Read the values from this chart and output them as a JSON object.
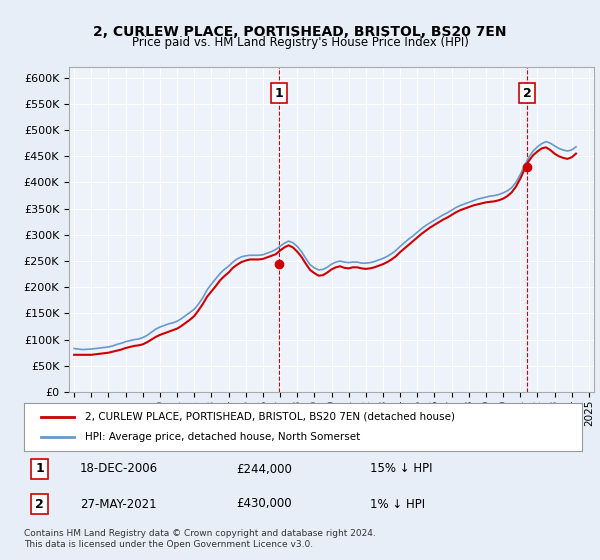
{
  "title": "2, CURLEW PLACE, PORTISHEAD, BRISTOL, BS20 7EN",
  "subtitle": "Price paid vs. HM Land Registry's House Price Index (HPI)",
  "legend_line1": "2, CURLEW PLACE, PORTISHEAD, BRISTOL, BS20 7EN (detached house)",
  "legend_line2": "HPI: Average price, detached house, North Somerset",
  "annotation1_label": "1",
  "annotation1_date": "18-DEC-2006",
  "annotation1_price": "£244,000",
  "annotation1_hpi": "15% ↓ HPI",
  "annotation2_label": "2",
  "annotation2_date": "27-MAY-2021",
  "annotation2_price": "£430,000",
  "annotation2_hpi": "1% ↓ HPI",
  "footer": "Contains HM Land Registry data © Crown copyright and database right 2024.\nThis data is licensed under the Open Government Licence v3.0.",
  "hpi_color": "#6699cc",
  "price_color": "#cc0000",
  "bg_color": "#e8eef8",
  "plot_bg": "#eef2fb",
  "grid_color": "#ffffff",
  "ylim": [
    0,
    620000
  ],
  "yticks": [
    0,
    50000,
    100000,
    150000,
    200000,
    250000,
    300000,
    350000,
    400000,
    450000,
    500000,
    550000,
    600000
  ],
  "hpi_data": {
    "years": [
      1995.0,
      1995.25,
      1995.5,
      1995.75,
      1996.0,
      1996.25,
      1996.5,
      1996.75,
      1997.0,
      1997.25,
      1997.5,
      1997.75,
      1998.0,
      1998.25,
      1998.5,
      1998.75,
      1999.0,
      1999.25,
      1999.5,
      1999.75,
      2000.0,
      2000.25,
      2000.5,
      2000.75,
      2001.0,
      2001.25,
      2001.5,
      2001.75,
      2002.0,
      2002.25,
      2002.5,
      2002.75,
      2003.0,
      2003.25,
      2003.5,
      2003.75,
      2004.0,
      2004.25,
      2004.5,
      2004.75,
      2005.0,
      2005.25,
      2005.5,
      2005.75,
      2006.0,
      2006.25,
      2006.5,
      2006.75,
      2007.0,
      2007.25,
      2007.5,
      2007.75,
      2008.0,
      2008.25,
      2008.5,
      2008.75,
      2009.0,
      2009.25,
      2009.5,
      2009.75,
      2010.0,
      2010.25,
      2010.5,
      2010.75,
      2011.0,
      2011.25,
      2011.5,
      2011.75,
      2012.0,
      2012.25,
      2012.5,
      2012.75,
      2013.0,
      2013.25,
      2013.5,
      2013.75,
      2014.0,
      2014.25,
      2014.5,
      2014.75,
      2015.0,
      2015.25,
      2015.5,
      2015.75,
      2016.0,
      2016.25,
      2016.5,
      2016.75,
      2017.0,
      2017.25,
      2017.5,
      2017.75,
      2018.0,
      2018.25,
      2018.5,
      2018.75,
      2019.0,
      2019.25,
      2019.5,
      2019.75,
      2020.0,
      2020.25,
      2020.5,
      2020.75,
      2021.0,
      2021.25,
      2021.5,
      2021.75,
      2022.0,
      2022.25,
      2022.5,
      2022.75,
      2023.0,
      2023.25,
      2023.5,
      2023.75,
      2024.0,
      2024.25
    ],
    "values": [
      83000,
      82000,
      81000,
      81500,
      82000,
      83000,
      84000,
      85000,
      86000,
      88000,
      91000,
      93000,
      96000,
      98000,
      100000,
      101000,
      104000,
      108000,
      114000,
      120000,
      124000,
      127000,
      130000,
      132000,
      135000,
      140000,
      146000,
      152000,
      158000,
      168000,
      180000,
      195000,
      206000,
      216000,
      226000,
      234000,
      240000,
      248000,
      254000,
      258000,
      260000,
      261000,
      261000,
      261000,
      262000,
      265000,
      268000,
      272000,
      278000,
      284000,
      288000,
      285000,
      278000,
      268000,
      255000,
      243000,
      237000,
      233000,
      234000,
      238000,
      244000,
      248000,
      250000,
      248000,
      247000,
      248000,
      248000,
      246000,
      246000,
      247000,
      249000,
      252000,
      255000,
      259000,
      264000,
      270000,
      278000,
      285000,
      292000,
      298000,
      305000,
      312000,
      318000,
      323000,
      328000,
      333000,
      338000,
      342000,
      347000,
      352000,
      356000,
      359000,
      362000,
      365000,
      368000,
      370000,
      372000,
      374000,
      375000,
      377000,
      380000,
      384000,
      390000,
      400000,
      415000,
      432000,
      448000,
      460000,
      468000,
      474000,
      478000,
      475000,
      470000,
      465000,
      462000,
      460000,
      462000,
      468000
    ]
  },
  "price_data": {
    "years": [
      1995.0,
      1995.25,
      1995.5,
      1995.75,
      1996.0,
      1996.25,
      1996.5,
      1996.75,
      1997.0,
      1997.25,
      1997.5,
      1997.75,
      1998.0,
      1998.25,
      1998.5,
      1998.75,
      1999.0,
      1999.25,
      1999.5,
      1999.75,
      2000.0,
      2000.25,
      2000.5,
      2000.75,
      2001.0,
      2001.25,
      2001.5,
      2001.75,
      2002.0,
      2002.25,
      2002.5,
      2002.75,
      2003.0,
      2003.25,
      2003.5,
      2003.75,
      2004.0,
      2004.25,
      2004.5,
      2004.75,
      2005.0,
      2005.25,
      2005.5,
      2005.75,
      2006.0,
      2006.25,
      2006.5,
      2006.75,
      2007.0,
      2007.25,
      2007.5,
      2007.75,
      2008.0,
      2008.25,
      2008.5,
      2008.75,
      2009.0,
      2009.25,
      2009.5,
      2009.75,
      2010.0,
      2010.25,
      2010.5,
      2010.75,
      2011.0,
      2011.25,
      2011.5,
      2011.75,
      2012.0,
      2012.25,
      2012.5,
      2012.75,
      2013.0,
      2013.25,
      2013.5,
      2013.75,
      2014.0,
      2014.25,
      2014.5,
      2014.75,
      2015.0,
      2015.25,
      2015.5,
      2015.75,
      2016.0,
      2016.25,
      2016.5,
      2016.75,
      2017.0,
      2017.25,
      2017.5,
      2017.75,
      2018.0,
      2018.25,
      2018.5,
      2018.75,
      2019.0,
      2019.25,
      2019.5,
      2019.75,
      2020.0,
      2020.25,
      2020.5,
      2020.75,
      2021.0,
      2021.25,
      2021.5,
      2021.75,
      2022.0,
      2022.25,
      2022.5,
      2022.75,
      2023.0,
      2023.25,
      2023.5,
      2023.75,
      2024.0,
      2024.25
    ],
    "values": [
      71000,
      71000,
      71000,
      71000,
      71000,
      72000,
      73000,
      74000,
      75000,
      77000,
      79000,
      81000,
      84000,
      86000,
      88000,
      89000,
      91000,
      95000,
      100000,
      105000,
      109000,
      112000,
      115000,
      118000,
      121000,
      126000,
      132000,
      138000,
      145000,
      156000,
      168000,
      182000,
      192000,
      202000,
      213000,
      221000,
      228000,
      237000,
      243000,
      248000,
      251000,
      253000,
      253000,
      253000,
      254000,
      257000,
      260000,
      263000,
      270000,
      276000,
      280000,
      276000,
      268000,
      258000,
      245000,
      233000,
      227000,
      222000,
      223000,
      228000,
      234000,
      238000,
      240000,
      237000,
      236000,
      238000,
      238000,
      236000,
      235000,
      236000,
      238000,
      241000,
      244000,
      248000,
      253000,
      259000,
      267000,
      274000,
      281000,
      288000,
      295000,
      302000,
      308000,
      314000,
      319000,
      324000,
      329000,
      333000,
      338000,
      343000,
      347000,
      350000,
      353000,
      356000,
      358000,
      360000,
      362000,
      363000,
      364000,
      366000,
      369000,
      374000,
      381000,
      392000,
      407000,
      425000,
      441000,
      452000,
      459000,
      465000,
      467000,
      462000,
      455000,
      450000,
      447000,
      445000,
      448000,
      455000
    ]
  },
  "sale1_year": 2006.96,
  "sale1_price": 244000,
  "sale2_year": 2021.41,
  "sale2_price": 430000
}
